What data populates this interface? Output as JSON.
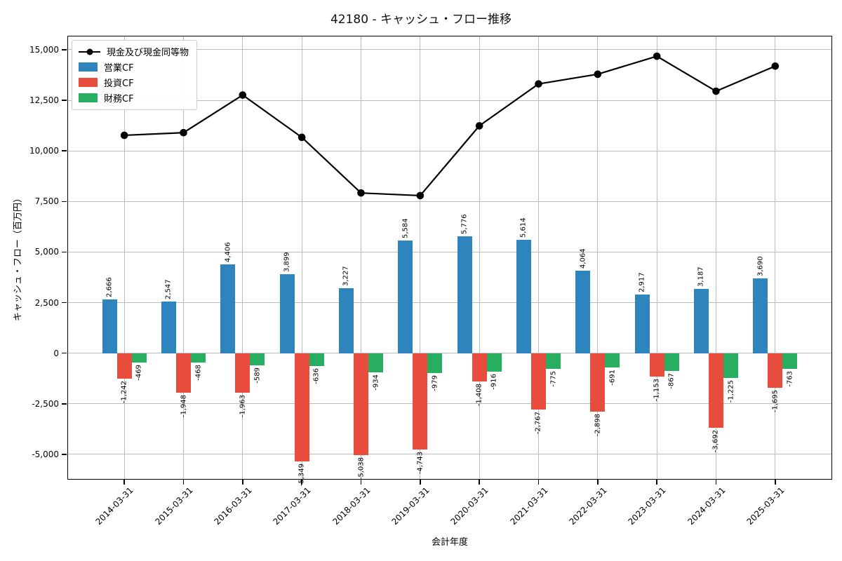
{
  "chart_data": {
    "type": "bar+line",
    "title": "42180 - キャッシュ・フロー推移",
    "xlabel": "会計年度",
    "ylabel": "キャッシュ・フロー（百万円）",
    "categories": [
      "2014-03-31",
      "2015-03-31",
      "2016-03-31",
      "2017-03-31",
      "2018-03-31",
      "2019-03-31",
      "2020-03-31",
      "2021-03-31",
      "2022-03-31",
      "2023-03-31",
      "2024-03-31",
      "2025-03-31"
    ],
    "bar_series": [
      {
        "key": "operating-cf",
        "name": "営業CF",
        "color": "#2e85bd",
        "values": [
          2666,
          2547,
          4406,
          3899,
          3227,
          5584,
          5776,
          5614,
          4064,
          2917,
          3187,
          3690
        ]
      },
      {
        "key": "investing-cf",
        "name": "投資CF",
        "color": "#e74c3c",
        "values": [
          -1242,
          -1948,
          -1963,
          -5349,
          -5038,
          -4743,
          -1408,
          -2767,
          -2898,
          -1153,
          -3692,
          -1695
        ]
      },
      {
        "key": "financing-cf",
        "name": "財務CF",
        "color": "#27ae60",
        "values": [
          -469,
          -468,
          -589,
          -636,
          -934,
          -979,
          -916,
          -775,
          -691,
          -867,
          -1225,
          -763
        ]
      }
    ],
    "line_series": [
      {
        "key": "cash-equivalents",
        "name": "現金及び現金同等物",
        "color": "#000000",
        "marker": "circle",
        "values_estimated_from_gridlines": true,
        "values": [
          10770,
          10900,
          12760,
          10670,
          7920,
          7790,
          11240,
          13310,
          13790,
          14680,
          12950,
          14190
        ]
      }
    ],
    "yticks": [
      15000,
      12500,
      10000,
      7500,
      5000,
      2500,
      0,
      -2500,
      -5000
    ],
    "ylim": [
      -6250,
      15690
    ],
    "grid": true,
    "grid_color": "#bcbcbc",
    "legend_position": "upper-left",
    "bar_value_labels": {
      "rotation": 90,
      "format": "thousands-comma"
    }
  }
}
